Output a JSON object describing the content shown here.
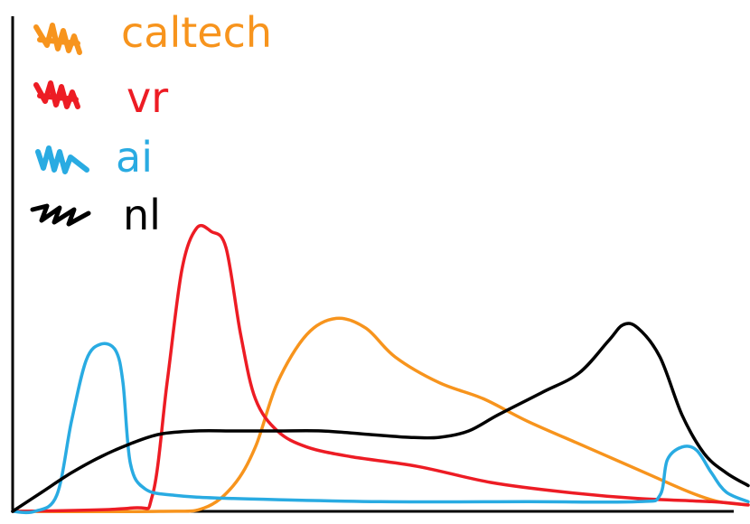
{
  "chart_data": {
    "type": "area",
    "title": "",
    "xlabel": "",
    "ylabel": "",
    "x_range": [
      0,
      100
    ],
    "y_range": [
      0,
      100
    ],
    "grid": false,
    "legend_placement": "top-left",
    "series": [
      {
        "name": "caltech",
        "color": "#F7941D",
        "shape": "handdrawn-density",
        "points": [
          [
            0,
            0
          ],
          [
            20,
            0
          ],
          [
            26,
            1
          ],
          [
            30,
            8
          ],
          [
            33,
            20
          ],
          [
            36,
            40
          ],
          [
            40,
            55
          ],
          [
            44,
            60
          ],
          [
            48,
            57
          ],
          [
            52,
            48
          ],
          [
            58,
            40
          ],
          [
            64,
            35
          ],
          [
            70,
            28
          ],
          [
            78,
            20
          ],
          [
            86,
            12
          ],
          [
            92,
            6
          ],
          [
            96,
            3
          ],
          [
            100,
            2
          ]
        ]
      },
      {
        "name": "vr",
        "color": "#ED1C24",
        "shape": "handdrawn-density",
        "points": [
          [
            0,
            0
          ],
          [
            16,
            1
          ],
          [
            19,
            5
          ],
          [
            21,
            40
          ],
          [
            23,
            75
          ],
          [
            25,
            88
          ],
          [
            27,
            87
          ],
          [
            29,
            82
          ],
          [
            31,
            55
          ],
          [
            33,
            35
          ],
          [
            36,
            25
          ],
          [
            40,
            20
          ],
          [
            46,
            17
          ],
          [
            55,
            14
          ],
          [
            65,
            9
          ],
          [
            75,
            6
          ],
          [
            85,
            4
          ],
          [
            95,
            3
          ],
          [
            100,
            2
          ]
        ]
      },
      {
        "name": "ai",
        "color": "#29ABE2",
        "shape": "handdrawn-density",
        "points": [
          [
            0,
            0
          ],
          [
            3,
            0
          ],
          [
            6,
            5
          ],
          [
            8,
            28
          ],
          [
            10,
            47
          ],
          [
            12,
            52
          ],
          [
            14,
            50
          ],
          [
            15,
            40
          ],
          [
            16,
            15
          ],
          [
            18,
            7
          ],
          [
            22,
            5
          ],
          [
            30,
            4
          ],
          [
            50,
            3
          ],
          [
            70,
            3
          ],
          [
            85,
            3
          ],
          [
            88,
            5
          ],
          [
            89,
            16
          ],
          [
            91,
            20
          ],
          [
            93,
            19
          ],
          [
            95,
            12
          ],
          [
            97,
            6
          ],
          [
            100,
            3
          ]
        ]
      },
      {
        "name": "nl",
        "color": "#000000",
        "shape": "handdrawn-density",
        "points": [
          [
            0,
            0
          ],
          [
            4,
            6
          ],
          [
            8,
            12
          ],
          [
            12,
            17
          ],
          [
            16,
            21
          ],
          [
            20,
            24
          ],
          [
            25,
            25
          ],
          [
            30,
            25
          ],
          [
            36,
            25
          ],
          [
            42,
            25
          ],
          [
            48,
            24
          ],
          [
            54,
            23
          ],
          [
            58,
            23
          ],
          [
            62,
            25
          ],
          [
            66,
            30
          ],
          [
            72,
            37
          ],
          [
            77,
            43
          ],
          [
            81,
            53
          ],
          [
            83,
            58
          ],
          [
            85,
            57
          ],
          [
            88,
            48
          ],
          [
            91,
            30
          ],
          [
            94,
            18
          ],
          [
            97,
            12
          ],
          [
            100,
            8
          ]
        ]
      }
    ]
  },
  "legend": {
    "items": [
      {
        "label": "caltech",
        "color": "#F7941D",
        "icon": "scribble-swatch"
      },
      {
        "label": "vr",
        "color": "#ED1C24",
        "icon": "scribble-swatch"
      },
      {
        "label": "ai",
        "color": "#29ABE2",
        "icon": "scribble-swatch"
      },
      {
        "label": "nl",
        "color": "#000000",
        "icon": "scribble-swatch"
      }
    ]
  }
}
